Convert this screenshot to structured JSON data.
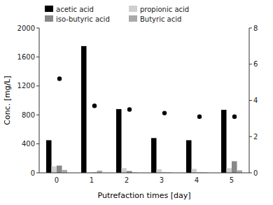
{
  "chart_data": {
    "type": "bar",
    "categories": [
      "0",
      "1",
      "2",
      "3",
      "4",
      "5"
    ],
    "xlabel": "Putrefaction times [day]",
    "ylabel": "Conc. [mg/L]",
    "series": [
      {
        "name": "acetic acid",
        "color": "#000000",
        "values": [
          450,
          1750,
          880,
          480,
          450,
          870
        ]
      },
      {
        "name": "propionic acid",
        "color": "#d0d0d0",
        "values": [
          90,
          5,
          65,
          50,
          55,
          65
        ]
      },
      {
        "name": "iso-butyric acid",
        "color": "#888888",
        "values": [
          100,
          5,
          25,
          5,
          5,
          160
        ]
      },
      {
        "name": "Butyric acid",
        "color": "#aaaaaa",
        "values": [
          40,
          30,
          5,
          5,
          5,
          35
        ]
      },
      {
        "type": "scatter",
        "axis": "y2",
        "color": "#000000",
        "marker": "circle",
        "values": [
          5.2,
          3.7,
          3.5,
          3.3,
          3.1,
          3.1
        ]
      }
    ],
    "ylim": [
      0,
      2000
    ],
    "yticks": [
      0,
      400,
      800,
      1200,
      1600,
      2000
    ],
    "y2lim": [
      0,
      8
    ],
    "y2ticks": [
      0,
      2,
      4,
      6,
      8
    ],
    "grid": false,
    "legend": "upper left"
  }
}
